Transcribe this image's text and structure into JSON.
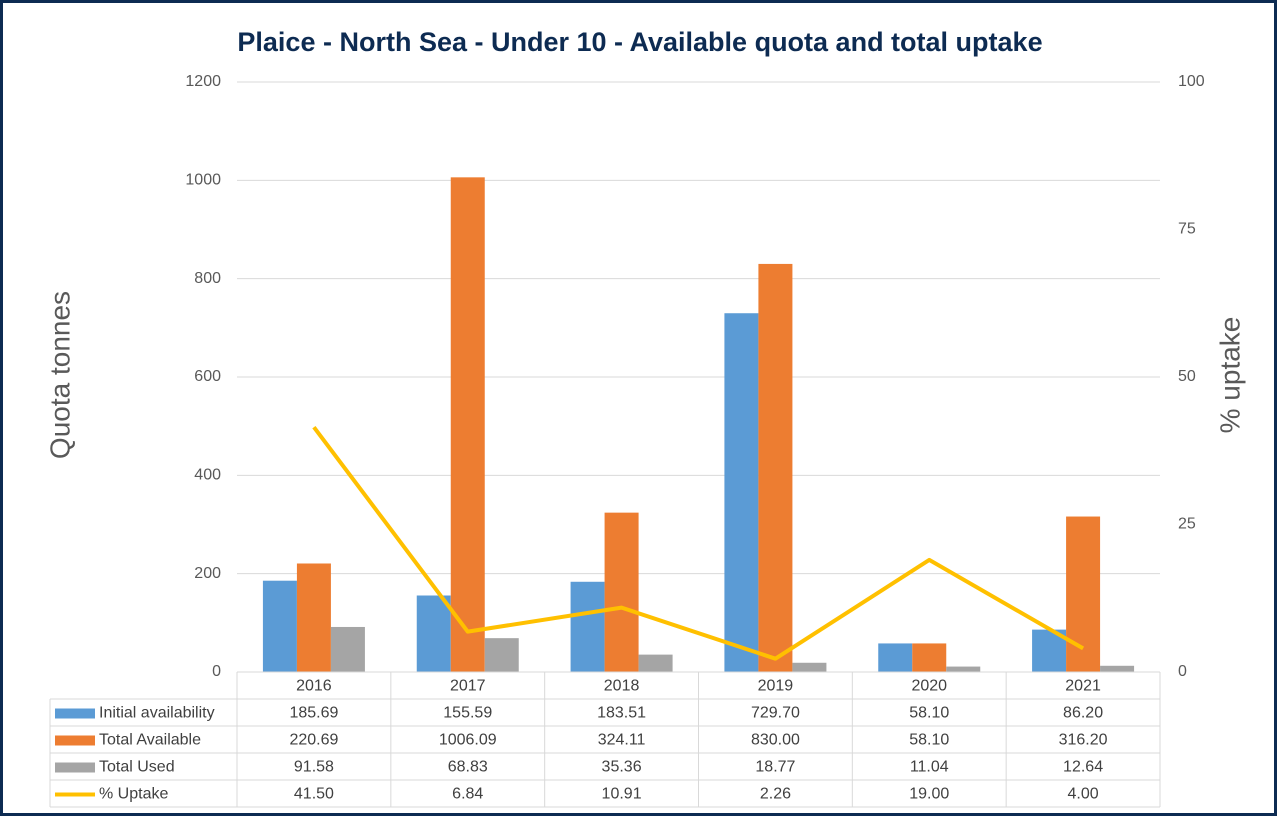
{
  "chart_data": {
    "type": "bar",
    "title": "Plaice - North Sea - Under 10 - Available quota and total uptake",
    "y_label": "Quota tonnes",
    "y2_label": "% uptake",
    "categories": [
      "2016",
      "2017",
      "2018",
      "2019",
      "2020",
      "2021"
    ],
    "series": [
      {
        "name": "Initial availability",
        "color": "#5b9bd5",
        "type": "bar",
        "values": [
          185.69,
          155.59,
          183.51,
          729.7,
          58.1,
          86.2
        ],
        "value_labels": [
          "185.69",
          "155.59",
          "183.51",
          "729.70",
          "58.10",
          "86.20"
        ]
      },
      {
        "name": "Total Available",
        "color": "#ed7d31",
        "type": "bar",
        "values": [
          220.69,
          1006.09,
          324.11,
          830,
          58.1,
          316.2
        ],
        "value_labels": [
          "220.69",
          "1006.09",
          "324.11",
          "830.00",
          "58.10",
          "316.20"
        ]
      },
      {
        "name": "Total Used",
        "color": "#a5a5a5",
        "type": "bar",
        "values": [
          91.58,
          68.83,
          35.36,
          18.77,
          11.04,
          12.64
        ],
        "value_labels": [
          "91.58",
          "68.83",
          "35.36",
          "18.77",
          "11.04",
          "12.64"
        ]
      },
      {
        "name": "% Uptake",
        "color": "#ffc000",
        "type": "line",
        "axis": "y2",
        "values": [
          41.5,
          6.84,
          10.91,
          2.26,
          19,
          4
        ],
        "value_labels": [
          "41.50",
          "6.84",
          "10.91",
          "2.26",
          "19.00",
          "4.00"
        ]
      }
    ],
    "ylim": [
      0,
      1200
    ],
    "yticks": [
      0,
      200,
      400,
      600,
      800,
      1000,
      1200
    ],
    "y2lim": [
      0,
      100
    ],
    "y2ticks": [
      0,
      25,
      50,
      75,
      100
    ],
    "grid": true
  }
}
